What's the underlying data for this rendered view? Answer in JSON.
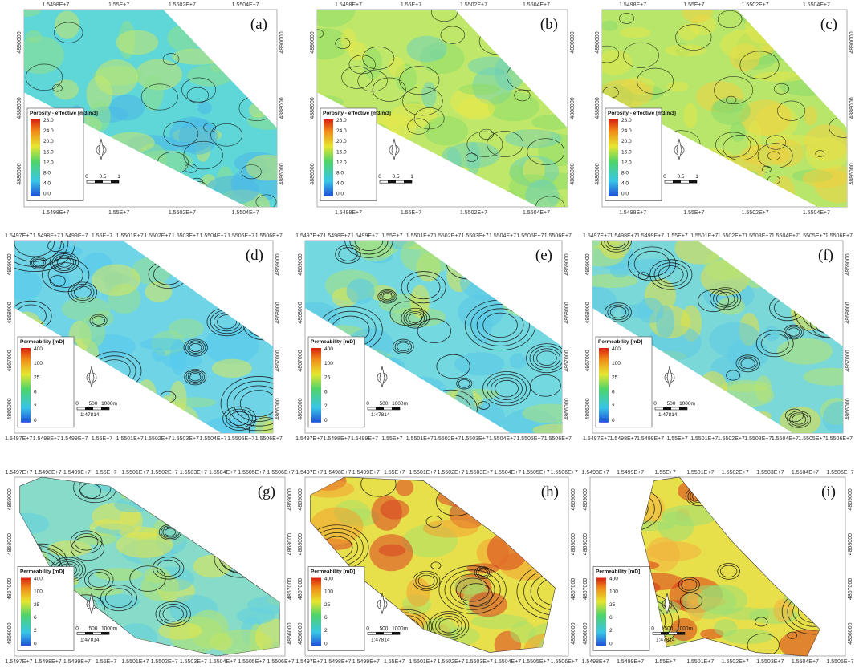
{
  "panels": [
    {
      "label": "(a)",
      "legend_title": "Porosity - effective [m3/m3]",
      "legend_ticks": [
        "28.0",
        "24.0",
        "20.0",
        "16.0",
        "12.0",
        "8.0",
        "4.0",
        "0.0"
      ],
      "x_ticks": [
        "1.5498E+7",
        "1.55E+7",
        "1.5502E+7",
        "1.5504E+7"
      ],
      "y_ticks": [
        "4890000",
        "4888000",
        "4886000"
      ],
      "scale_labels": [
        "0",
        "0.5",
        "1"
      ]
    },
    {
      "label": "(b)",
      "legend_title": "Porosity - effective [m3/m3]",
      "legend_ticks": [
        "28.0",
        "24.0",
        "20.0",
        "16.0",
        "12.0",
        "8.0",
        "4.0",
        "0.0"
      ],
      "x_ticks": [
        "1.5498E+7",
        "1.55E+7",
        "1.5502E+7",
        "1.5504E+7"
      ],
      "y_ticks": [
        "4890000",
        "4888000",
        "4886000"
      ],
      "scale_labels": [
        "0",
        "0.5",
        "1"
      ]
    },
    {
      "label": "(c)",
      "legend_title": "Porosity - effective [m3/m3]",
      "legend_ticks": [
        "28.0",
        "24.0",
        "20.0",
        "16.0",
        "12.0",
        "8.0",
        "4.0",
        "0.0"
      ],
      "x_ticks": [
        "1.5498E+7",
        "1.55E+7",
        "1.5502E+7",
        "1.5504E+7"
      ],
      "y_ticks": [
        "4890000",
        "4888000",
        "4886000"
      ],
      "scale_labels": [
        "0",
        "0.5",
        "1"
      ]
    },
    {
      "label": "(d)",
      "legend_title": "Permeability [mD]",
      "legend_ticks": [
        "400",
        "100",
        "25",
        "6",
        "2",
        "0"
      ],
      "x_ticks": [
        "1.5497E+7",
        "1.5498E+7",
        "1.5499E+7",
        "1.55E+7",
        "1.5501E+7",
        "1.5502E+7",
        "1.5503E+7",
        "1.5504E+7",
        "1.5505E+7",
        "1.5506E+7"
      ],
      "y_ticks": [
        "4869000",
        "4868000",
        "4867000",
        "4866000"
      ],
      "scale_labels": [
        "0",
        "500",
        "1000m",
        "1:47814"
      ]
    },
    {
      "label": "(e)",
      "legend_title": "Permeability [mD]",
      "legend_ticks": [
        "400",
        "100",
        "25",
        "6",
        "2",
        "0"
      ],
      "x_ticks": [
        "1.5497E+7",
        "1.5498E+7",
        "1.5499E+7",
        "1.55E+7",
        "1.5501E+7",
        "1.5502E+7",
        "1.5503E+7",
        "1.5504E+7",
        "1.5505E+7",
        "1.5506E+7"
      ],
      "y_ticks": [
        "4869000",
        "4868000",
        "4867000",
        "4866000"
      ],
      "scale_labels": [
        "0",
        "500",
        "1000m",
        "1:47814"
      ]
    },
    {
      "label": "(f)",
      "legend_title": "Permeability [mD]",
      "legend_ticks": [
        "400",
        "100",
        "25",
        "6",
        "2",
        "0"
      ],
      "x_ticks": [
        "1.5497E+7",
        "1.5498E+7",
        "1.5499E+7",
        "1.55E+7",
        "1.5501E+7",
        "1.5502E+7",
        "1.5503E+7",
        "1.5504E+7",
        "1.5505E+7",
        "1.5506E+7"
      ],
      "y_ticks": [
        "4869000",
        "4868000",
        "4867000",
        "4866000"
      ],
      "scale_labels": [
        "0",
        "500",
        "1000m",
        "1:47814"
      ]
    },
    {
      "label": "(g)",
      "legend_title": "Permeability [mD]",
      "legend_ticks": [
        "400",
        "100",
        "25",
        "6",
        "2",
        "0"
      ],
      "x_ticks": [
        "1.5497E+7",
        "1.5498E+7",
        "1.5499E+7",
        "1.55E+7",
        "1.5501E+7",
        "1.5502E+7",
        "1.5503E+7",
        "1.5504E+7",
        "1.5505E+7",
        "1.5506E+7"
      ],
      "y_ticks": [
        "4869000",
        "4868000",
        "4867000",
        "4866000"
      ],
      "scale_labels": [
        "0",
        "500",
        "1000m",
        "1:47814"
      ]
    },
    {
      "label": "(h)",
      "legend_title": "Permeability [mD]",
      "legend_ticks": [
        "400",
        "100",
        "25",
        "6",
        "2",
        "0"
      ],
      "x_ticks": [
        "1.5497E+7",
        "1.5498E+7",
        "1.5499E+7",
        "1.55E+7",
        "1.5501E+7",
        "1.5502E+7",
        "1.5503E+7",
        "1.5504E+7",
        "1.5505E+7",
        "1.5506E+7"
      ],
      "y_ticks": [
        "4869000",
        "4868000",
        "4867000",
        "4866000"
      ],
      "scale_labels": [
        "0",
        "500",
        "1000m",
        "1:47814"
      ]
    },
    {
      "label": "(i)",
      "legend_title": "Permeability [mD]",
      "legend_ticks": [
        "400",
        "100",
        "25",
        "6",
        "2",
        "0"
      ],
      "x_ticks": [
        "1.5498E+7",
        "1.5499E+7",
        "1.55E+7",
        "1.5501E+7",
        "1.5502E+7",
        "1.5503E+7",
        "1.5504E+7",
        "1.5505E+7"
      ],
      "y_ticks": [
        "4869000",
        "4868000",
        "4867000",
        "4866000"
      ],
      "scale_labels": [
        "0",
        "500",
        "1000m",
        "1:47814"
      ]
    }
  ]
}
